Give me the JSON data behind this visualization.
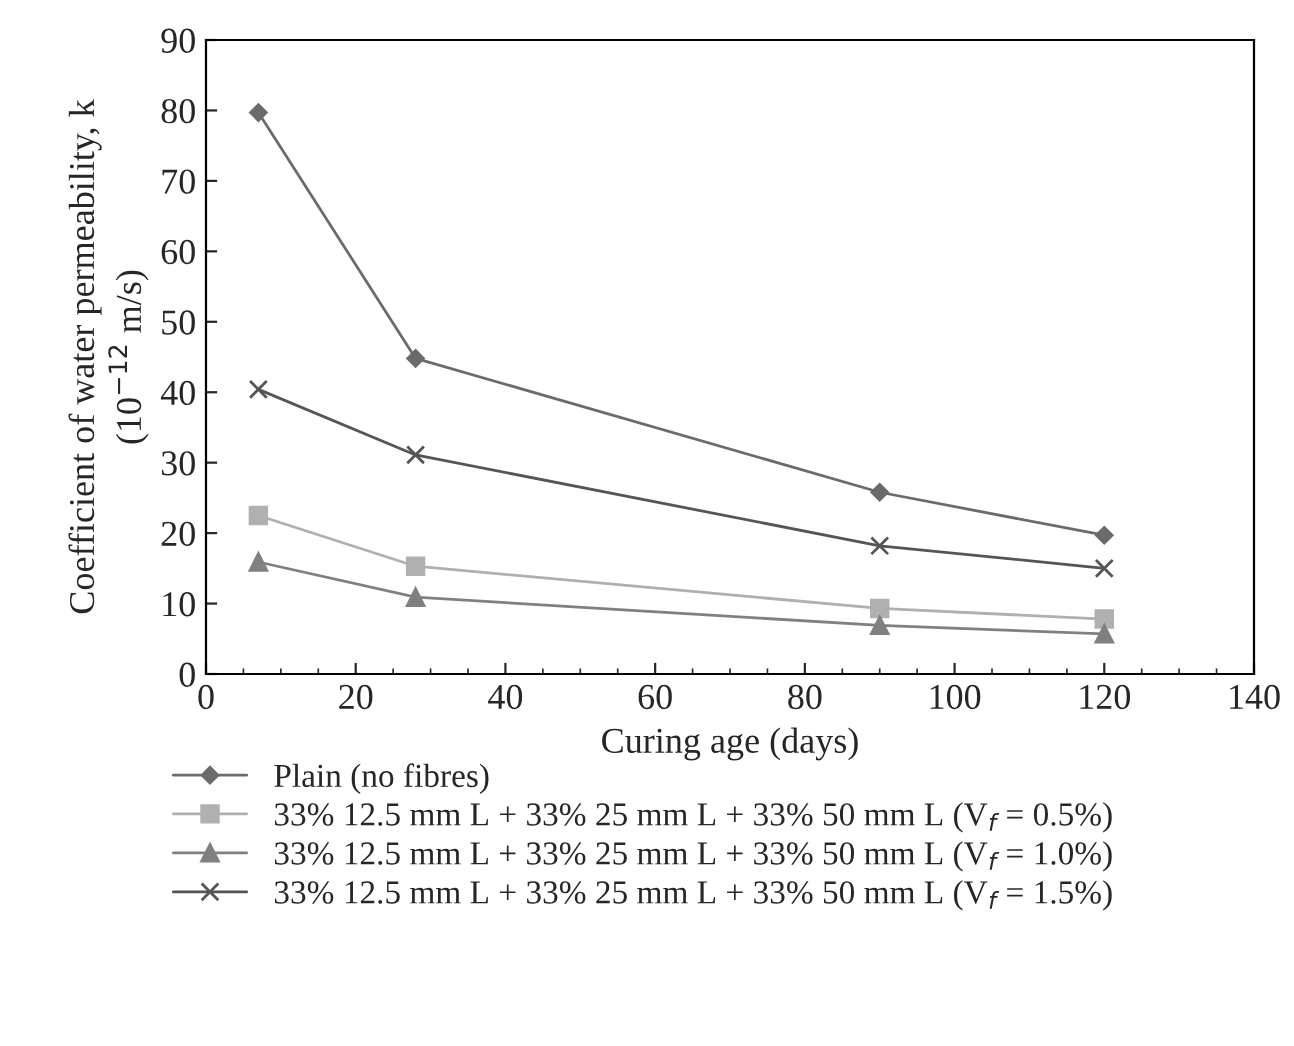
{
  "chart_data": {
    "type": "line",
    "xlabel": "Curing age (days)",
    "ylabel": "Coefficient of water permeability, k\n(10$^{−12}$ m/s)",
    "x": [
      7,
      28,
      90,
      120
    ],
    "series": [
      {
        "name": "Plain (no fibres)",
        "color": "#6b6b6b",
        "marker": "diamond",
        "values": [
          79.7,
          44.8,
          25.8,
          19.7
        ]
      },
      {
        "name": "33% 12.5 mm L + 33% 25 mm L + 33% 50 mm L (V$_{f}$ = 0.5%)",
        "color": "#b0b0b0",
        "marker": "square",
        "values": [
          22.5,
          15.3,
          9.3,
          7.8
        ]
      },
      {
        "name": "33% 12.5 mm L + 33% 25 mm L + 33% 50 mm L (V$_{f}$ = 1.0%)",
        "color": "#808080",
        "marker": "triangle",
        "values": [
          15.9,
          10.9,
          6.9,
          5.7
        ]
      },
      {
        "name": "33% 12.5 mm L + 33% 25 mm L + 33% 50 mm L (V$_{f}$ = 1.5%)",
        "color": "#555555",
        "marker": "cross",
        "values": [
          40.4,
          31.1,
          18.2,
          15.0
        ]
      }
    ],
    "xlim": [
      0,
      140
    ],
    "xticks": [
      0,
      20,
      40,
      60,
      80,
      100,
      120,
      140
    ],
    "ylim": [
      0,
      90
    ],
    "yticks": [
      0,
      10,
      20,
      30,
      40,
      50,
      60,
      70,
      80,
      90
    ],
    "grid": false,
    "legend": "bottom",
    "line_style": "solid"
  }
}
